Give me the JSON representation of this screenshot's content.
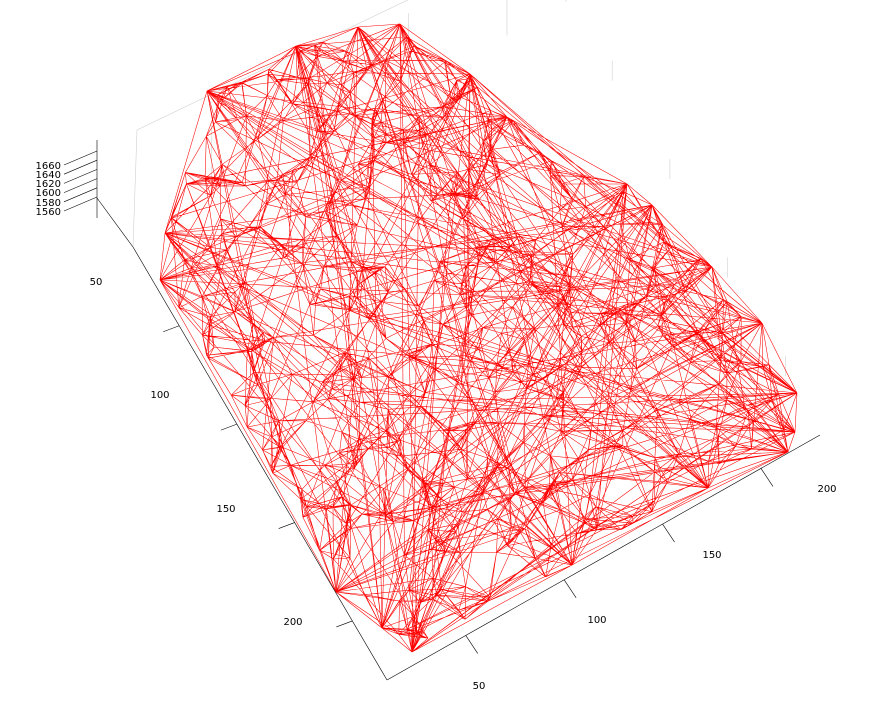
{
  "chart_data": {
    "type": "surface-mesh-3d",
    "title": "",
    "xlabel": "",
    "ylabel": "",
    "zlabel": "",
    "mesh_color": "#ff0000",
    "grid": true,
    "x_ticks": [
      50,
      100,
      150,
      200
    ],
    "y_ticks": [
      50,
      100,
      150,
      200
    ],
    "z_ticks": [
      1560,
      1580,
      1600,
      1620,
      1640,
      1660
    ],
    "xlim": [
      10,
      230
    ],
    "ylim": [
      10,
      230
    ],
    "zlim": [
      1560,
      1660
    ],
    "x_tick_labels": [
      "50",
      "100",
      "150",
      "200"
    ],
    "y_tick_labels": [
      "50",
      "100",
      "150",
      "200"
    ],
    "z_tick_labels": [
      "1560",
      "1580",
      "1600",
      "1620",
      "1640",
      "1660"
    ]
  }
}
